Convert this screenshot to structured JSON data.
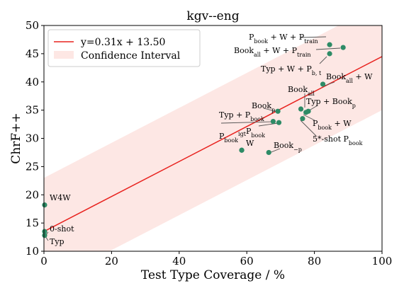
{
  "chart_data": {
    "type": "scatter",
    "title": "kgv--eng",
    "xlabel": "Test Type Coverage / %",
    "ylabel": "ChrF++",
    "xlim": [
      0,
      100
    ],
    "ylim": [
      10,
      50
    ],
    "xticks": [
      "0",
      "20",
      "40",
      "60",
      "80",
      "100"
    ],
    "yticks": [
      "10",
      "15",
      "20",
      "25",
      "30",
      "35",
      "40",
      "45",
      "50"
    ],
    "grid": false,
    "legend_position": "top-left",
    "fit": {
      "label": "y=0.31x + 13.50",
      "slope": 0.31,
      "intercept": 13.5,
      "color": "#e8231f"
    },
    "confidence_interval": {
      "label": "Confidence Interval",
      "half_width": 9.5,
      "color": "#fde7e4"
    },
    "point_color": "#2e8b66",
    "points": [
      {
        "label": "P_book + W + P_train",
        "parts": [
          [
            "P",
            ""
          ],
          [
            "book",
            "sub"
          ],
          [
            " + W + P",
            ""
          ],
          [
            "train",
            "sub"
          ]
        ],
        "x": 84.5,
        "y": 46.6
      },
      {
        "label": "Book_all + W + P_train",
        "parts": [
          [
            "Book",
            ""
          ],
          [
            "all",
            "sub"
          ],
          [
            " + W + P",
            ""
          ],
          [
            "train",
            "sub"
          ]
        ],
        "x": 88.5,
        "y": 46.1
      },
      {
        "label": "Typ + W + P_b,t",
        "parts": [
          [
            "Typ + W + P",
            ""
          ],
          [
            "b, t",
            "sub"
          ]
        ],
        "x": 84.5,
        "y": 45.0
      },
      {
        "label": "Book_all + W",
        "parts": [
          [
            "Book",
            ""
          ],
          [
            "all",
            "sub"
          ],
          [
            " + W",
            ""
          ]
        ],
        "x": 82.5,
        "y": 39.6
      },
      {
        "label": "Book_all",
        "parts": [
          [
            "Book",
            ""
          ],
          [
            "all",
            "sub"
          ]
        ],
        "x": 76.0,
        "y": 35.2
      },
      {
        "label": "Typ + Book_p",
        "parts": [
          [
            "Typ + Book",
            ""
          ],
          [
            "p",
            "sub"
          ]
        ],
        "x": 77.5,
        "y": 34.6
      },
      {
        "label": "P_book + W",
        "parts": [
          [
            "P",
            ""
          ],
          [
            "book",
            "sub"
          ],
          [
            " + W",
            ""
          ]
        ],
        "x": 78.2,
        "y": 34.8
      },
      {
        "label": "Book_p",
        "parts": [
          [
            "Book",
            ""
          ],
          [
            "p",
            "sub"
          ]
        ],
        "x": 69.2,
        "y": 34.8
      },
      {
        "label": "Typ + P_book",
        "parts": [
          [
            "Typ + P",
            ""
          ],
          [
            "book",
            "sub"
          ]
        ],
        "x": 67.8,
        "y": 33.0
      },
      {
        "label": "P_book",
        "parts": [
          [
            "P",
            ""
          ],
          [
            "book",
            "sub"
          ]
        ],
        "x": 69.5,
        "y": 32.8
      },
      {
        "label": "5*-shot P_book",
        "parts": [
          [
            "5*-shot P",
            ""
          ],
          [
            "book",
            "sub"
          ]
        ],
        "x": 76.5,
        "y": 33.5
      },
      {
        "label": "P_book^igt",
        "parts": [
          [
            "P",
            ""
          ],
          [
            "book",
            "sub"
          ],
          [
            "igt",
            "sup"
          ]
        ],
        "x": 58.5,
        "y": 27.9
      },
      {
        "label": "W",
        "parts": [
          [
            "W",
            ""
          ]
        ],
        "x": 58.5,
        "y": 27.9
      },
      {
        "label": "Book_-p",
        "parts": [
          [
            "Book",
            ""
          ],
          [
            "−p",
            "sub"
          ]
        ],
        "x": 66.5,
        "y": 27.5
      },
      {
        "label": "W4W",
        "parts": [
          [
            "W4W",
            ""
          ]
        ],
        "x": 0.2,
        "y": 18.2
      },
      {
        "label": "0-shot",
        "parts": [
          [
            "0-shot",
            ""
          ]
        ],
        "x": 0.2,
        "y": 13.5
      },
      {
        "label": "Typ",
        "parts": [
          [
            "Typ",
            ""
          ]
        ],
        "x": 0.2,
        "y": 12.8
      }
    ]
  }
}
